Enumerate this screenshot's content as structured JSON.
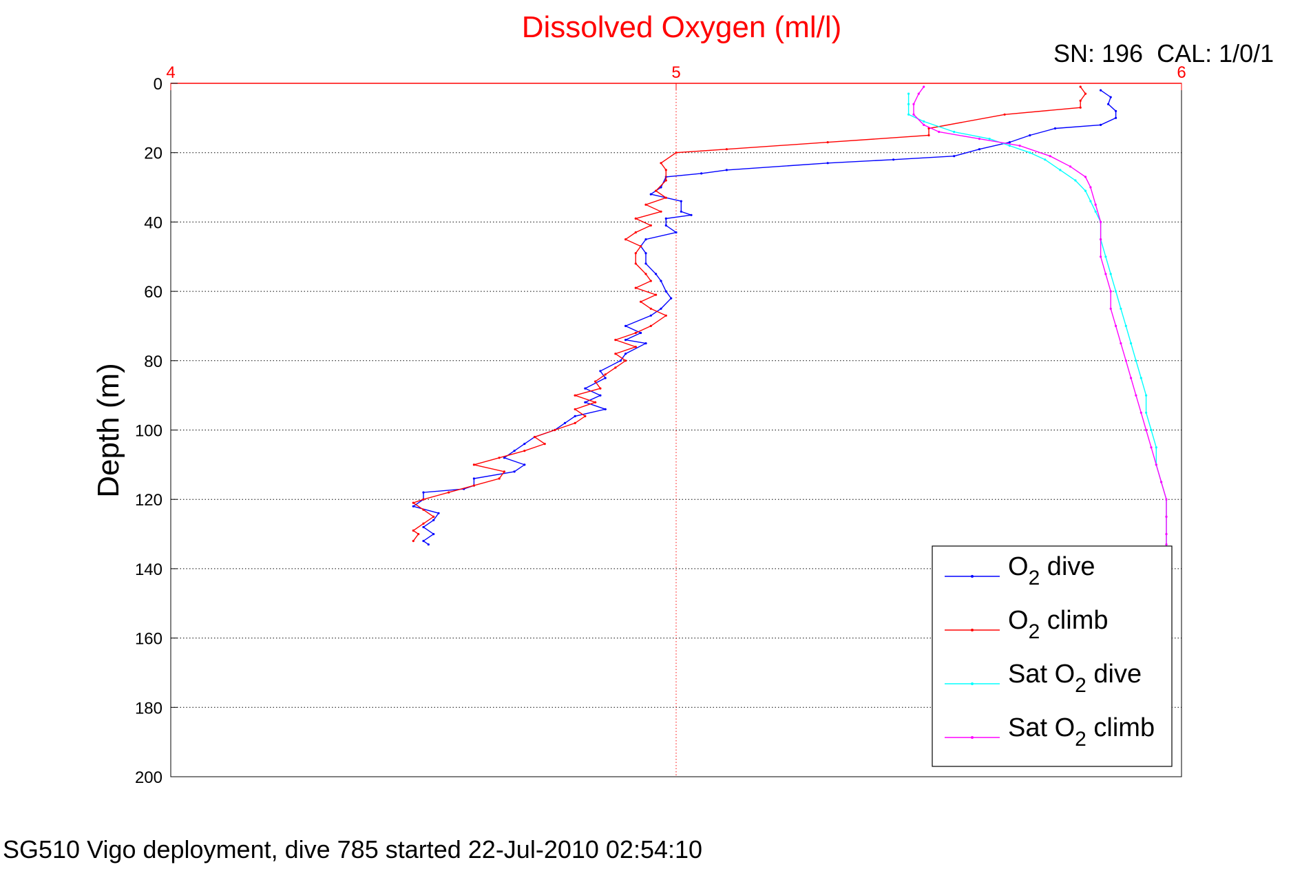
{
  "chart_data": {
    "type": "line",
    "title": "Dissolved Oxygen (ml/l)",
    "calibration": "SN: 196  CAL: 1/0/1",
    "caption": "SG510 Vigo deployment, dive 785 started 22-Jul-2010 02:54:10",
    "xlabel": "",
    "ylabel": "Depth (m)",
    "xlim": [
      4,
      6
    ],
    "ylim": [
      0,
      200
    ],
    "y_reversed": true,
    "x_axis_position": "top",
    "xticks": [
      "4",
      "5",
      "6"
    ],
    "yticks": [
      "0",
      "20",
      "40",
      "60",
      "80",
      "100",
      "120",
      "140",
      "160",
      "180",
      "200"
    ],
    "grid": "dotted",
    "legend_position": "lower-right",
    "colors": {
      "title": "#ff0000",
      "x_axis": "#ff0000",
      "grid_x": "#ff0000",
      "grid_y": "#000000"
    },
    "series": [
      {
        "name": "O2 dive",
        "legend": {
          "pre": "O",
          "sub": "2",
          "post": " dive"
        },
        "color": "#0000ff",
        "points": [
          [
            5.84,
            2
          ],
          [
            5.86,
            4
          ],
          [
            5.855,
            6
          ],
          [
            5.87,
            8
          ],
          [
            5.87,
            10
          ],
          [
            5.84,
            12
          ],
          [
            5.75,
            13
          ],
          [
            5.7,
            15
          ],
          [
            5.66,
            17
          ],
          [
            5.6,
            19
          ],
          [
            5.55,
            21
          ],
          [
            5.43,
            22
          ],
          [
            5.3,
            23
          ],
          [
            5.1,
            25
          ],
          [
            5.05,
            26
          ],
          [
            4.98,
            27
          ],
          [
            4.97,
            30
          ],
          [
            4.95,
            32
          ],
          [
            5.01,
            34
          ],
          [
            5.01,
            37
          ],
          [
            5.03,
            38
          ],
          [
            4.98,
            39
          ],
          [
            4.98,
            41
          ],
          [
            5.0,
            43
          ],
          [
            4.94,
            45
          ],
          [
            4.93,
            47
          ],
          [
            4.94,
            49
          ],
          [
            4.94,
            52
          ],
          [
            4.96,
            55
          ],
          [
            4.97,
            57
          ],
          [
            4.98,
            60
          ],
          [
            4.99,
            62
          ],
          [
            4.97,
            65
          ],
          [
            4.95,
            67
          ],
          [
            4.9,
            70
          ],
          [
            4.93,
            72
          ],
          [
            4.9,
            74
          ],
          [
            4.94,
            75
          ],
          [
            4.9,
            78
          ],
          [
            4.89,
            80
          ],
          [
            4.85,
            83
          ],
          [
            4.86,
            85
          ],
          [
            4.82,
            88
          ],
          [
            4.85,
            90
          ],
          [
            4.82,
            92
          ],
          [
            4.86,
            94
          ],
          [
            4.8,
            96
          ],
          [
            4.78,
            98
          ],
          [
            4.76,
            100
          ],
          [
            4.72,
            102
          ],
          [
            4.7,
            104
          ],
          [
            4.68,
            106
          ],
          [
            4.66,
            108
          ],
          [
            4.7,
            110
          ],
          [
            4.68,
            112
          ],
          [
            4.6,
            114
          ],
          [
            4.6,
            116
          ],
          [
            4.58,
            117
          ],
          [
            4.5,
            118
          ],
          [
            4.5,
            120
          ],
          [
            4.48,
            122
          ],
          [
            4.53,
            124
          ],
          [
            4.52,
            126
          ],
          [
            4.5,
            128
          ],
          [
            4.52,
            130
          ],
          [
            4.5,
            132
          ],
          [
            4.51,
            133
          ]
        ]
      },
      {
        "name": "O2 climb",
        "legend": {
          "pre": "O",
          "sub": "2",
          "post": " climb"
        },
        "color": "#ff0000",
        "points": [
          [
            4.48,
            132
          ],
          [
            4.49,
            130
          ],
          [
            4.48,
            129
          ],
          [
            4.5,
            127
          ],
          [
            4.52,
            125
          ],
          [
            4.5,
            123
          ],
          [
            4.48,
            121
          ],
          [
            4.5,
            120
          ],
          [
            4.55,
            118
          ],
          [
            4.6,
            116
          ],
          [
            4.65,
            114
          ],
          [
            4.66,
            112
          ],
          [
            4.6,
            110
          ],
          [
            4.65,
            108
          ],
          [
            4.7,
            106
          ],
          [
            4.74,
            104
          ],
          [
            4.72,
            102
          ],
          [
            4.76,
            100
          ],
          [
            4.8,
            98
          ],
          [
            4.82,
            96
          ],
          [
            4.8,
            94
          ],
          [
            4.84,
            92
          ],
          [
            4.8,
            90
          ],
          [
            4.85,
            88
          ],
          [
            4.84,
            86
          ],
          [
            4.86,
            84
          ],
          [
            4.88,
            82
          ],
          [
            4.9,
            80
          ],
          [
            4.88,
            78
          ],
          [
            4.92,
            76
          ],
          [
            4.88,
            74
          ],
          [
            4.92,
            72
          ],
          [
            4.95,
            70
          ],
          [
            4.98,
            67
          ],
          [
            4.95,
            65
          ],
          [
            4.93,
            63
          ],
          [
            4.96,
            61
          ],
          [
            4.92,
            59
          ],
          [
            4.95,
            57
          ],
          [
            4.94,
            55
          ],
          [
            4.92,
            52
          ],
          [
            4.92,
            49
          ],
          [
            4.93,
            47
          ],
          [
            4.9,
            45
          ],
          [
            4.92,
            43
          ],
          [
            4.95,
            41
          ],
          [
            4.92,
            39
          ],
          [
            4.97,
            37
          ],
          [
            4.94,
            35
          ],
          [
            4.98,
            33
          ],
          [
            4.96,
            31
          ],
          [
            4.98,
            28
          ],
          [
            4.98,
            25
          ],
          [
            4.97,
            23
          ],
          [
            5.0,
            20
          ],
          [
            5.1,
            19
          ],
          [
            5.3,
            17
          ],
          [
            5.5,
            15
          ],
          [
            5.5,
            13
          ],
          [
            5.65,
            9
          ],
          [
            5.8,
            7
          ],
          [
            5.8,
            5
          ],
          [
            5.81,
            3
          ],
          [
            5.8,
            1
          ]
        ]
      },
      {
        "name": "Sat O2 dive",
        "legend": {
          "pre": "Sat O",
          "sub": "2",
          "post": " dive"
        },
        "color": "#00ffff",
        "points": [
          [
            5.46,
            3
          ],
          [
            5.46,
            6
          ],
          [
            5.46,
            9
          ],
          [
            5.49,
            11
          ],
          [
            5.55,
            14
          ],
          [
            5.62,
            16
          ],
          [
            5.66,
            18
          ],
          [
            5.7,
            20
          ],
          [
            5.73,
            22
          ],
          [
            5.76,
            25
          ],
          [
            5.79,
            28
          ],
          [
            5.81,
            31
          ],
          [
            5.82,
            34
          ],
          [
            5.83,
            37
          ],
          [
            5.84,
            40
          ],
          [
            5.84,
            45
          ],
          [
            5.85,
            50
          ],
          [
            5.86,
            55
          ],
          [
            5.87,
            60
          ],
          [
            5.88,
            65
          ],
          [
            5.89,
            70
          ],
          [
            5.9,
            75
          ],
          [
            5.91,
            80
          ],
          [
            5.92,
            85
          ],
          [
            5.93,
            90
          ],
          [
            5.93,
            95
          ],
          [
            5.94,
            100
          ],
          [
            5.95,
            105
          ],
          [
            5.95,
            110
          ],
          [
            5.96,
            115
          ],
          [
            5.97,
            120
          ],
          [
            5.97,
            125
          ],
          [
            5.97,
            130
          ],
          [
            5.97,
            133
          ]
        ]
      },
      {
        "name": "Sat O2 climb",
        "legend": {
          "pre": "Sat O",
          "sub": "2",
          "post": " climb"
        },
        "color": "#ff00ff",
        "points": [
          [
            5.97,
            133
          ],
          [
            5.97,
            130
          ],
          [
            5.97,
            125
          ],
          [
            5.97,
            120
          ],
          [
            5.96,
            115
          ],
          [
            5.95,
            110
          ],
          [
            5.94,
            105
          ],
          [
            5.93,
            100
          ],
          [
            5.92,
            95
          ],
          [
            5.91,
            90
          ],
          [
            5.9,
            85
          ],
          [
            5.89,
            80
          ],
          [
            5.88,
            75
          ],
          [
            5.87,
            70
          ],
          [
            5.86,
            65
          ],
          [
            5.86,
            60
          ],
          [
            5.85,
            55
          ],
          [
            5.84,
            50
          ],
          [
            5.84,
            45
          ],
          [
            5.84,
            40
          ],
          [
            5.83,
            35
          ],
          [
            5.82,
            30
          ],
          [
            5.81,
            27
          ],
          [
            5.78,
            24
          ],
          [
            5.74,
            21
          ],
          [
            5.68,
            18
          ],
          [
            5.6,
            16
          ],
          [
            5.52,
            14
          ],
          [
            5.49,
            12
          ],
          [
            5.47,
            9
          ],
          [
            5.47,
            6
          ],
          [
            5.48,
            3
          ],
          [
            5.49,
            1
          ]
        ]
      }
    ]
  }
}
